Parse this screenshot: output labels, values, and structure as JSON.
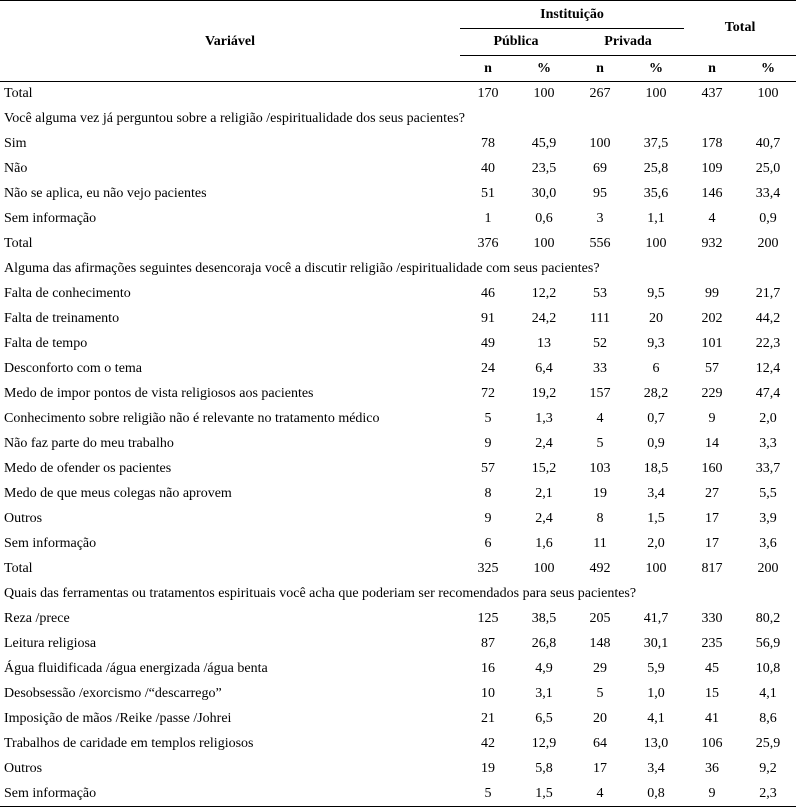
{
  "page": {
    "background": "#ffffff",
    "text_color": "#000000",
    "rule_color": "#000000"
  },
  "table": {
    "headers": {
      "variavel": "Variável",
      "instituicao": "Instituição",
      "publica": "Pública",
      "privada": "Privada",
      "total": "Total",
      "n": "n",
      "pct": "%"
    },
    "rows": [
      {
        "type": "data",
        "label": "Total",
        "values": [
          "170",
          "100",
          "267",
          "100",
          "437",
          "100"
        ]
      },
      {
        "type": "section",
        "label": "Você alguma vez já perguntou sobre a religião /espiritualidade dos seus pacientes?"
      },
      {
        "type": "data",
        "label": "Sim",
        "values": [
          "78",
          "45,9",
          "100",
          "37,5",
          "178",
          "40,7"
        ]
      },
      {
        "type": "data",
        "label": "Não",
        "values": [
          "40",
          "23,5",
          "69",
          "25,8",
          "109",
          "25,0"
        ]
      },
      {
        "type": "data",
        "label": "Não se aplica, eu não vejo pacientes",
        "values": [
          "51",
          "30,0",
          "95",
          "35,6",
          "146",
          "33,4"
        ]
      },
      {
        "type": "data",
        "label": "Sem informação",
        "values": [
          "1",
          "0,6",
          "3",
          "1,1",
          "4",
          "0,9"
        ]
      },
      {
        "type": "data",
        "label": "Total",
        "values": [
          "376",
          "100",
          "556",
          "100",
          "932",
          "200"
        ]
      },
      {
        "type": "section",
        "label": "Alguma das afirmações seguintes desencoraja você a discutir religião /espiritualidade com seus pacientes?"
      },
      {
        "type": "data",
        "label": "Falta de conhecimento",
        "values": [
          "46",
          "12,2",
          "53",
          "9,5",
          "99",
          "21,7"
        ]
      },
      {
        "type": "data",
        "label": "Falta de treinamento",
        "values": [
          "91",
          "24,2",
          "111",
          "20",
          "202",
          "44,2"
        ]
      },
      {
        "type": "data",
        "label": "Falta de tempo",
        "values": [
          "49",
          "13",
          "52",
          "9,3",
          "101",
          "22,3"
        ]
      },
      {
        "type": "data",
        "label": "Desconforto com o tema",
        "values": [
          "24",
          "6,4",
          "33",
          "6",
          "57",
          "12,4"
        ]
      },
      {
        "type": "data",
        "label": "Medo de impor pontos de vista religiosos aos pacientes",
        "values": [
          "72",
          "19,2",
          "157",
          "28,2",
          "229",
          "47,4"
        ]
      },
      {
        "type": "data",
        "label": "Conhecimento sobre religião não é relevante no tratamento médico",
        "values": [
          "5",
          "1,3",
          "4",
          "0,7",
          "9",
          "2,0"
        ]
      },
      {
        "type": "data",
        "label": "Não faz parte do meu trabalho",
        "values": [
          "9",
          "2,4",
          "5",
          "0,9",
          "14",
          "3,3"
        ]
      },
      {
        "type": "data",
        "label": "Medo de ofender os pacientes",
        "values": [
          "57",
          "15,2",
          "103",
          "18,5",
          "160",
          "33,7"
        ]
      },
      {
        "type": "data",
        "label": "Medo de que meus colegas não aprovem",
        "values": [
          "8",
          "2,1",
          "19",
          "3,4",
          "27",
          "5,5"
        ]
      },
      {
        "type": "data",
        "label": "Outros",
        "values": [
          "9",
          "2,4",
          "8",
          "1,5",
          "17",
          "3,9"
        ]
      },
      {
        "type": "data",
        "label": "Sem informação",
        "values": [
          "6",
          "1,6",
          "11",
          "2,0",
          "17",
          "3,6"
        ]
      },
      {
        "type": "data",
        "label": "Total",
        "values": [
          "325",
          "100",
          "492",
          "100",
          "817",
          "200"
        ]
      },
      {
        "type": "section",
        "label": "Quais das ferramentas ou tratamentos espirituais você acha que poderiam ser recomendados para seus pacientes?"
      },
      {
        "type": "data",
        "label": "Reza /prece",
        "values": [
          "125",
          "38,5",
          "205",
          "41,7",
          "330",
          "80,2"
        ]
      },
      {
        "type": "data",
        "label": "Leitura religiosa",
        "values": [
          "87",
          "26,8",
          "148",
          "30,1",
          "235",
          "56,9"
        ]
      },
      {
        "type": "data",
        "label": "Água fluidificada /água energizada /água benta",
        "values": [
          "16",
          "4,9",
          "29",
          "5,9",
          "45",
          "10,8"
        ]
      },
      {
        "type": "data",
        "label": "Desobsessão /exorcismo /“descarrego”",
        "values": [
          "10",
          "3,1",
          "5",
          "1,0",
          "15",
          "4,1"
        ]
      },
      {
        "type": "data",
        "label": "Imposição de mãos /Reike /passe /Johrei",
        "values": [
          "21",
          "6,5",
          "20",
          "4,1",
          "41",
          "8,6"
        ]
      },
      {
        "type": "data",
        "label": "Trabalhos de caridade em templos religiosos",
        "values": [
          "42",
          "12,9",
          "64",
          "13,0",
          "106",
          "25,9"
        ]
      },
      {
        "type": "data",
        "label": "Outros",
        "values": [
          "19",
          "5,8",
          "17",
          "3,4",
          "36",
          "9,2"
        ]
      },
      {
        "type": "data",
        "label": "Sem informação",
        "values": [
          "5",
          "1,5",
          "4",
          "0,8",
          "9",
          "2,3"
        ]
      }
    ]
  }
}
